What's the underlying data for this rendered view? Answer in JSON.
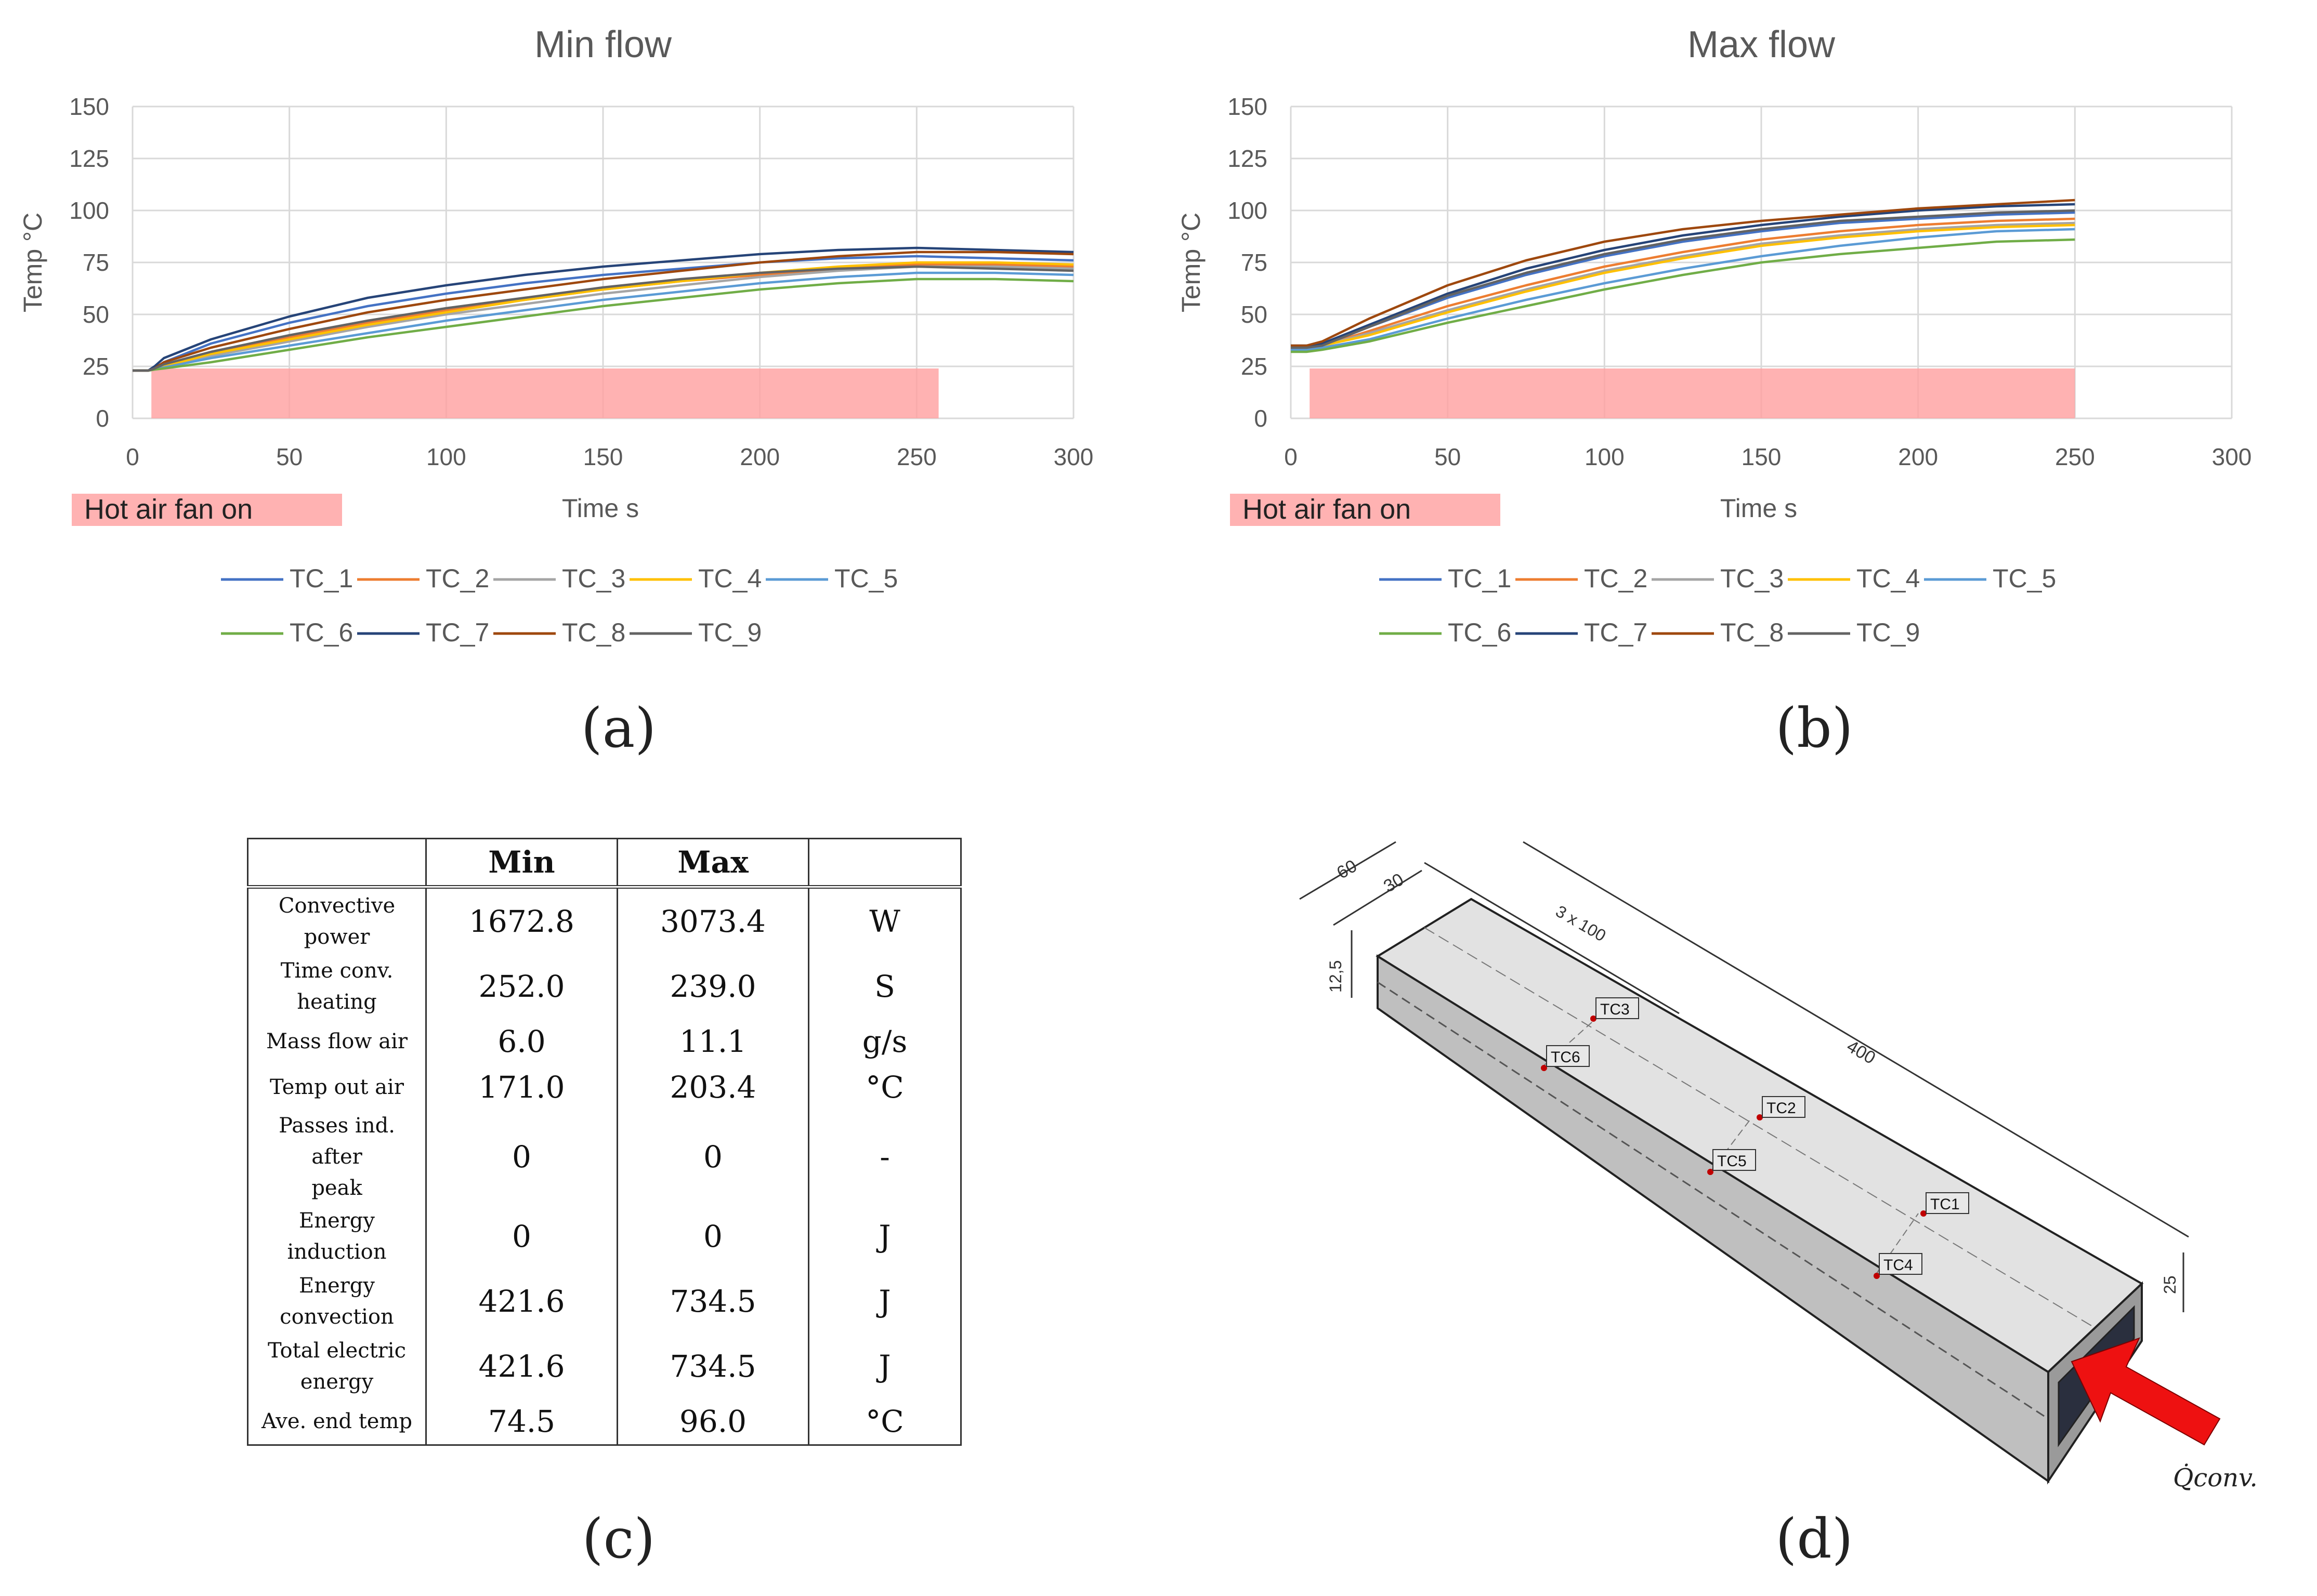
{
  "charts": [
    {
      "title": "Min flow",
      "ylabel": "Temp °C",
      "xlabel": "Time s",
      "fan_label": "Hot air fan on",
      "panel_label": "(a)"
    },
    {
      "title": "Max flow",
      "ylabel": "Temp °C",
      "xlabel": "Time s",
      "fan_label": "Hot air fan on",
      "panel_label": "(b)"
    }
  ],
  "chart_data": [
    {
      "type": "line",
      "title": "Min flow",
      "xlabel": "Time s",
      "ylabel": "Temp °C",
      "xlim": [
        0,
        300
      ],
      "ylim": [
        0,
        150
      ],
      "xticks": [
        "0",
        "50",
        "100",
        "150",
        "200",
        "250",
        "300"
      ],
      "yticks": [
        "0",
        "25",
        "50",
        "75",
        "100",
        "125",
        "150"
      ],
      "grid": true,
      "legend_position": "bottom",
      "fan_on": {
        "label": "Hot air fan on",
        "start": 6,
        "end": 257,
        "level": 24
      },
      "x": [
        0,
        5,
        7,
        10,
        25,
        50,
        75,
        100,
        125,
        150,
        175,
        200,
        225,
        250,
        275,
        300
      ],
      "series": [
        {
          "name": "TC_1",
          "color": "#4472C4",
          "values": [
            23,
            23,
            24,
            27,
            36,
            46,
            54,
            60,
            65,
            69,
            72,
            75,
            77,
            78,
            77,
            76
          ]
        },
        {
          "name": "TC_2",
          "color": "#ED7D31",
          "values": [
            23,
            23,
            23.5,
            25,
            31,
            39,
            46,
            52,
            57,
            62,
            66,
            69,
            72,
            74,
            74,
            73
          ]
        },
        {
          "name": "TC_3",
          "color": "#A5A5A5",
          "values": [
            23,
            23,
            23.5,
            25,
            30,
            37,
            44,
            50,
            55,
            60,
            64,
            68,
            71,
            73,
            73,
            72
          ]
        },
        {
          "name": "TC_4",
          "color": "#FFC000",
          "values": [
            23,
            23,
            23.5,
            25,
            31,
            38,
            45,
            51,
            57,
            62,
            66,
            70,
            73,
            75,
            75,
            74
          ]
        },
        {
          "name": "TC_5",
          "color": "#5B9BD5",
          "values": [
            23,
            23,
            23.5,
            24.5,
            29,
            35,
            41,
            47,
            52,
            57,
            61,
            65,
            68,
            70,
            70,
            69
          ]
        },
        {
          "name": "TC_6",
          "color": "#70AD47",
          "values": [
            23,
            23,
            23.5,
            24,
            27,
            33,
            39,
            44,
            49,
            54,
            58,
            62,
            65,
            67,
            67,
            66
          ]
        },
        {
          "name": "TC_7",
          "color": "#264478",
          "values": [
            23,
            23,
            25,
            29,
            38,
            49,
            58,
            64,
            69,
            73,
            76,
            79,
            81,
            82,
            81,
            80
          ]
        },
        {
          "name": "TC_8",
          "color": "#9E480E",
          "values": [
            23,
            23,
            24,
            27,
            34,
            43,
            51,
            57,
            62,
            67,
            71,
            75,
            78,
            80,
            80,
            79
          ]
        },
        {
          "name": "TC_9",
          "color": "#636363",
          "values": [
            23,
            23,
            24,
            26,
            32,
            40,
            47,
            53,
            58,
            63,
            67,
            70,
            72,
            73,
            72,
            71
          ]
        }
      ]
    },
    {
      "type": "line",
      "title": "Max flow",
      "xlabel": "Time s",
      "ylabel": "Temp °C",
      "xlim": [
        0,
        300
      ],
      "ylim": [
        0,
        150
      ],
      "xticks": [
        "0",
        "50",
        "100",
        "150",
        "200",
        "250",
        "300"
      ],
      "yticks": [
        "0",
        "25",
        "50",
        "75",
        "100",
        "125",
        "150"
      ],
      "grid": true,
      "legend_position": "bottom",
      "fan_on": {
        "label": "Hot air fan on",
        "start": 6,
        "end": 250,
        "level": 24
      },
      "x": [
        0,
        5,
        10,
        25,
        50,
        75,
        100,
        125,
        150,
        175,
        200,
        225,
        250
      ],
      "series": [
        {
          "name": "TC_1",
          "color": "#4472C4",
          "values": [
            34,
            34,
            35,
            44,
            58,
            69,
            78,
            85,
            90,
            94,
            96,
            98,
            99
          ]
        },
        {
          "name": "TC_2",
          "color": "#ED7D31",
          "values": [
            34,
            34,
            35,
            42,
            54,
            64,
            73,
            80,
            86,
            90,
            93,
            95,
            96
          ]
        },
        {
          "name": "TC_3",
          "color": "#A5A5A5",
          "values": [
            34,
            34,
            35,
            41,
            52,
            62,
            71,
            78,
            84,
            88,
            91,
            93,
            94
          ]
        },
        {
          "name": "TC_4",
          "color": "#FFC000",
          "values": [
            34,
            34,
            35,
            40,
            51,
            61,
            70,
            77,
            83,
            87,
            90,
            92,
            93
          ]
        },
        {
          "name": "TC_5",
          "color": "#5B9BD5",
          "values": [
            33,
            33,
            34,
            38,
            48,
            57,
            65,
            72,
            78,
            83,
            87,
            90,
            91
          ]
        },
        {
          "name": "TC_6",
          "color": "#70AD47",
          "values": [
            32,
            32,
            33,
            37,
            46,
            54,
            62,
            69,
            75,
            79,
            82,
            85,
            86
          ]
        },
        {
          "name": "TC_7",
          "color": "#264478",
          "values": [
            35,
            35,
            36,
            45,
            60,
            72,
            81,
            88,
            93,
            97,
            100,
            102,
            103
          ]
        },
        {
          "name": "TC_8",
          "color": "#9E480E",
          "values": [
            35,
            35,
            37,
            48,
            64,
            76,
            85,
            91,
            95,
            98,
            101,
            103,
            105
          ]
        },
        {
          "name": "TC_9",
          "color": "#636363",
          "values": [
            34,
            34,
            35,
            44,
            59,
            70,
            79,
            86,
            91,
            95,
            97,
            99,
            100
          ]
        }
      ]
    }
  ],
  "table": {
    "headers": [
      "",
      "Min",
      "Max",
      ""
    ],
    "rows": [
      {
        "label1": "Convective",
        "label2": "power",
        "min": "1672.8",
        "max": "3073.4",
        "unit": "W"
      },
      {
        "label1": "Time conv.",
        "label2": "heating",
        "min": "252.0",
        "max": "239.0",
        "unit": "S"
      },
      {
        "label1": "Mass flow air",
        "label2": "",
        "min": "6.0",
        "max": "11.1",
        "unit": "g/s"
      },
      {
        "label1": "Temp out air",
        "label2": "",
        "min": "171.0",
        "max": "203.4",
        "unit": "°C"
      },
      {
        "label1": "Passes ind. after",
        "label2": "peak",
        "min": "0",
        "max": "0",
        "unit": "-"
      },
      {
        "label1": "Energy",
        "label2": "induction",
        "min": "0",
        "max": "0",
        "unit": "J"
      },
      {
        "label1": "Energy",
        "label2": "convection",
        "min": "421.6",
        "max": "734.5",
        "unit": "J"
      },
      {
        "label1": "Total electric",
        "label2": "energy",
        "min": "421.6",
        "max": "734.5",
        "unit": "J"
      },
      {
        "label1": "Ave. end temp",
        "label2": "",
        "min": "74.5",
        "max": "96.0",
        "unit": "°C"
      }
    ],
    "panel_label": "(c)"
  },
  "diagram": {
    "dims": {
      "d60": "60",
      "d30": "30",
      "d3x100": "3 x 100",
      "d400": "400",
      "d12_5": "12,5",
      "d25": "25"
    },
    "tc_labels": {
      "tc1": "TC1",
      "tc2": "TC2",
      "tc3": "TC3",
      "tc4": "TC4",
      "tc5": "TC5",
      "tc6": "TC6"
    },
    "q_label": "Q̇conv.",
    "panel_label": "(d)",
    "arrow_color": "#EE1111"
  }
}
